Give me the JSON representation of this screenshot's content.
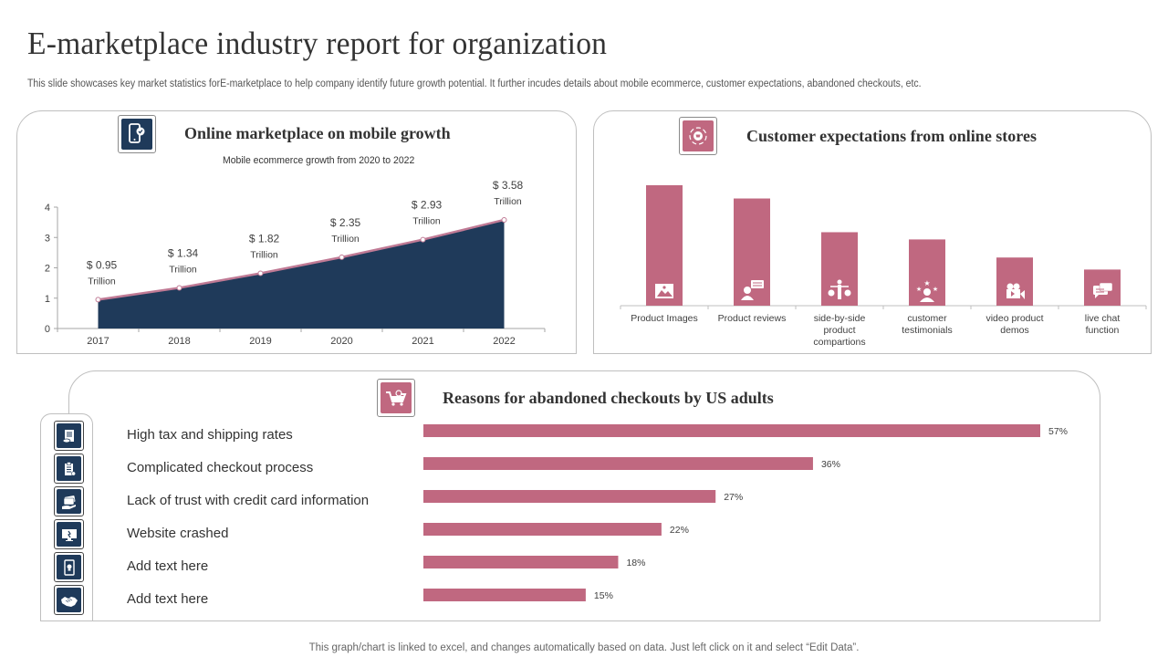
{
  "header": {
    "title": "E-marketplace industry report for organization",
    "subtitle": "This slide showcases key market statistics forE-marketplace to help company identify future growth potential. It further incudes details about mobile ecommerce, customer expectations, abandoned checkouts, etc."
  },
  "colors": {
    "navy": "#1f3a5a",
    "rose": "#c06880",
    "line": "#c07a95"
  },
  "sections": {
    "mobile": {
      "title": "Online marketplace on mobile growth",
      "icon": "mobile-phone-icon"
    },
    "expectations": {
      "title": "Customer expectations from online stores",
      "icon": "cart-cycle-icon"
    },
    "abandoned": {
      "title": "Reasons for abandoned checkouts by US adults",
      "icon": "shopping-cart-icon"
    }
  },
  "chart_data": [
    {
      "type": "area",
      "title": "Online marketplace on mobile growth",
      "subtitle": "Mobile ecommerce growth from 2020 to 2022",
      "x": [
        "2017",
        "2018",
        "2019",
        "2020",
        "2021",
        "2022"
      ],
      "values": [
        0.95,
        1.34,
        1.82,
        2.35,
        2.93,
        3.58
      ],
      "data_labels": [
        {
          "value": "$ 0.95",
          "unit": "Trillion"
        },
        {
          "value": "$ 1.34",
          "unit": "Trillion"
        },
        {
          "value": "$ 1.82",
          "unit": "Trillion"
        },
        {
          "value": "$ 2.35",
          "unit": "Trillion"
        },
        {
          "value": "$ 2.93",
          "unit": "Trillion"
        },
        {
          "value": "$ 3.58",
          "unit": "Trillion"
        }
      ],
      "yticks": [
        "0",
        "1",
        "2",
        "3",
        "4"
      ],
      "ylim": [
        0,
        4
      ],
      "xlabel": "",
      "ylabel": "",
      "grid": false,
      "legend": "none"
    },
    {
      "type": "bar",
      "title": "Customer expectations from online stores",
      "categories": [
        "Product Images",
        "Product reviews",
        "side-by-side product compartions",
        "customer testimonials",
        "video product demos",
        "live chat function"
      ],
      "category_icons": [
        "image-icon",
        "review-person-icon",
        "balance-person-icon",
        "rating-stars-icon",
        "video-camera-icon",
        "chat-bubbles-icon"
      ],
      "values": [
        100,
        89,
        61,
        55,
        40,
        30
      ],
      "value_note": "relative heights, no axis shown",
      "ylim": [
        0,
        100
      ],
      "grid": false,
      "legend": "none"
    },
    {
      "type": "bar",
      "orientation": "horizontal",
      "title": "Reasons for abandoned checkouts by US adults",
      "categories": [
        "High tax and shipping rates",
        "Complicated checkout process",
        "Lack of trust with credit card information",
        "Website crashed",
        "Add text here",
        "Add text here"
      ],
      "category_icons": [
        "tax-receipt-icon",
        "clipboard-checklist-icon",
        "credit-card-hand-icon",
        "monitor-crash-icon",
        "mobile-security-icon",
        "handshake-icon"
      ],
      "values": [
        57,
        36,
        27,
        22,
        18,
        15
      ],
      "data_labels": [
        "57%",
        "36%",
        "27%",
        "22%",
        "18%",
        "15%"
      ],
      "xlim": [
        0,
        57
      ],
      "grid": false,
      "legend": "none"
    }
  ],
  "footer": {
    "note": "This graph/chart is linked to excel,  and changes automatically based on data. Just left click on it and select “Edit Data”."
  }
}
